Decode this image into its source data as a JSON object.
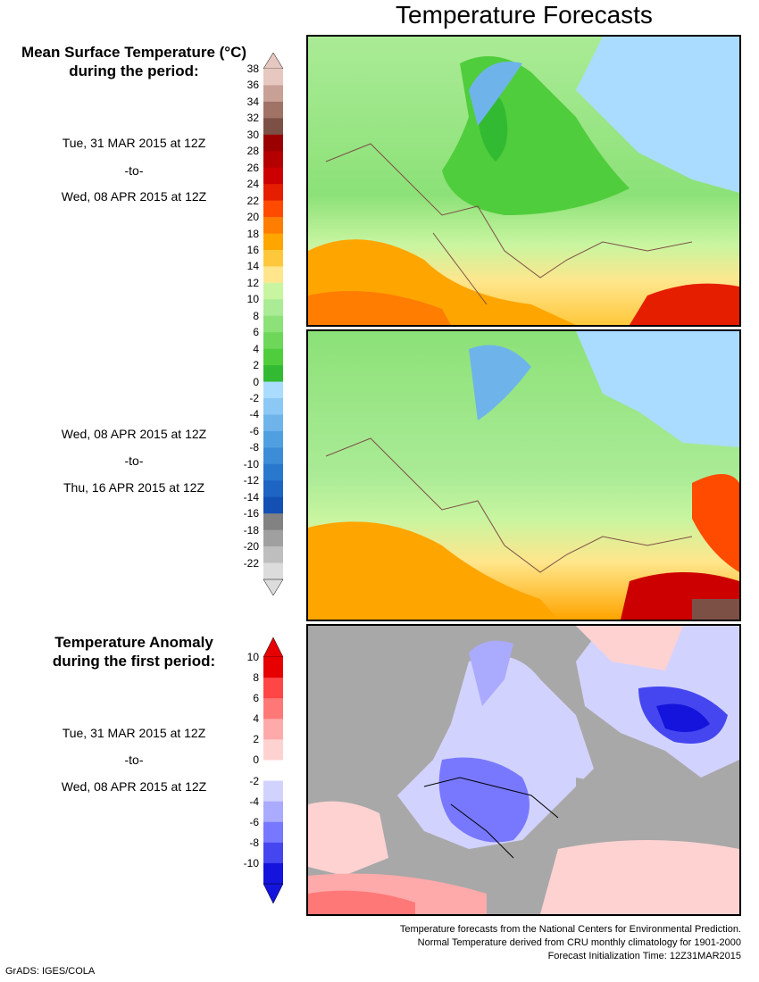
{
  "title": "Temperature Forecasts",
  "panel1": {
    "heading_lines": [
      "Mean Surface Temperature (°C)",
      "during the period:"
    ],
    "start": "Tue, 31 MAR 2015 at 12Z",
    "sep": "-to-",
    "end": "Wed, 08 APR 2015 at 12Z"
  },
  "panel2": {
    "start": "Wed, 08 APR 2015 at 12Z",
    "sep": "-to-",
    "end": "Thu, 16 APR 2015 at 12Z"
  },
  "panel3": {
    "heading_lines": [
      "Temperature Anomaly",
      "during the first period:"
    ],
    "start": "Tue, 31 MAR 2015 at 12Z",
    "sep": "-to-",
    "end": "Wed, 08 APR 2015 at 12Z"
  },
  "temp_scale": {
    "labels": [
      "38",
      "36",
      "34",
      "32",
      "30",
      "28",
      "26",
      "24",
      "22",
      "20",
      "18",
      "16",
      "14",
      "12",
      "10",
      "8",
      "6",
      "4",
      "2",
      "0",
      "-2",
      "-4",
      "-6",
      "-8",
      "-10",
      "-12",
      "-14",
      "-16",
      "-18",
      "-20",
      "-22"
    ],
    "colors": [
      "#e6c8c0",
      "#c8a096",
      "#a07366",
      "#7d5046",
      "#9b0000",
      "#b40000",
      "#cd0000",
      "#e61e00",
      "#ff4b00",
      "#ff7d00",
      "#ffa500",
      "#ffc83c",
      "#ffe68c",
      "#c8f5a0",
      "#aaeb96",
      "#8ce178",
      "#6ed75a",
      "#50cd3c",
      "#32bb32",
      "#aadcff",
      "#8cc8f5",
      "#6eb4eb",
      "#50a0e1",
      "#3c8cd7",
      "#2878cd",
      "#1e64c3",
      "#1450b4",
      "#828282",
      "#a0a0a0",
      "#bebebe",
      "#dcdcdc"
    ]
  },
  "anom_scale": {
    "labels": [
      "10",
      "8",
      "6",
      "4",
      "2",
      "0",
      "-2",
      "-4",
      "-6",
      "-8",
      "-10"
    ],
    "colors": [
      "#e60000",
      "#ff4646",
      "#ff7878",
      "#ffaaaa",
      "#ffd2d2",
      "#ffffff",
      "#d2d2ff",
      "#aaaaff",
      "#7878ff",
      "#4646f0",
      "#1414dc"
    ]
  },
  "footer": {
    "lines": [
      "Temperature forecasts from the National Centers for Environmental Prediction.",
      "Normal Temperature derived from CRU monthly climatology for 1901-2000",
      "Forecast Initialization Time: 12Z31MAR2015"
    ]
  },
  "credit": "GrADS: IGES/COLA"
}
